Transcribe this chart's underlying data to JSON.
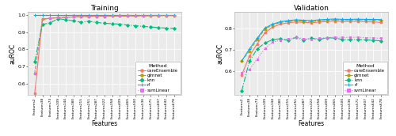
{
  "x_labels": [
    "Features2",
    "Features38",
    "Features73",
    "Features109",
    "Features144",
    "Features180",
    "Features215",
    "Features251",
    "Features287",
    "Features322",
    "Features358",
    "Features409",
    "Features465",
    "Features500",
    "Features536",
    "Features571",
    "Features607",
    "Features642",
    "Features678"
  ],
  "train": {
    "careEnsemble": [
      0.545,
      0.975,
      0.98,
      0.984,
      0.986,
      0.988,
      0.99,
      0.991,
      0.992,
      0.992,
      0.993,
      0.993,
      0.994,
      0.994,
      0.995,
      0.995,
      0.996,
      0.996,
      0.996
    ],
    "glmnet": [
      0.66,
      0.975,
      0.98,
      0.984,
      0.986,
      0.988,
      0.99,
      0.991,
      0.992,
      0.992,
      0.993,
      0.993,
      0.994,
      0.994,
      0.995,
      0.995,
      0.996,
      0.996,
      0.996
    ],
    "knn": [
      0.73,
      0.945,
      0.953,
      0.978,
      0.972,
      0.965,
      0.957,
      0.963,
      0.956,
      0.951,
      0.949,
      0.946,
      0.941,
      0.937,
      0.933,
      0.93,
      0.926,
      0.923,
      0.921
    ],
    "rf": [
      1.0,
      1.0,
      1.0,
      1.0,
      1.0,
      1.0,
      1.0,
      1.0,
      1.0,
      1.0,
      1.0,
      1.0,
      1.0,
      1.0,
      1.0,
      1.0,
      1.0,
      1.0,
      1.0
    ],
    "svmLinear": [
      0.66,
      0.975,
      0.98,
      0.984,
      0.986,
      0.988,
      0.99,
      0.991,
      0.992,
      0.992,
      0.993,
      0.993,
      0.994,
      0.994,
      0.995,
      0.995,
      0.996,
      0.996,
      0.996
    ]
  },
  "valid": {
    "careEnsemble": [
      0.584,
      0.672,
      0.728,
      0.78,
      0.806,
      0.82,
      0.826,
      0.83,
      0.828,
      0.826,
      0.83,
      0.832,
      0.834,
      0.832,
      0.832,
      0.833,
      0.831,
      0.83,
      0.828
    ],
    "glmnet": [
      0.65,
      0.695,
      0.748,
      0.796,
      0.816,
      0.828,
      0.832,
      0.836,
      0.834,
      0.832,
      0.836,
      0.838,
      0.84,
      0.839,
      0.839,
      0.84,
      0.839,
      0.839,
      0.838
    ],
    "knn": [
      0.51,
      0.648,
      0.705,
      0.732,
      0.748,
      0.752,
      0.744,
      0.758,
      0.746,
      0.755,
      0.748,
      0.757,
      0.755,
      0.749,
      0.747,
      0.749,
      0.747,
      0.745,
      0.742
    ],
    "rf": [
      0.648,
      0.705,
      0.755,
      0.802,
      0.82,
      0.831,
      0.836,
      0.84,
      0.838,
      0.836,
      0.84,
      0.842,
      0.844,
      0.842,
      0.842,
      0.843,
      0.842,
      0.842,
      0.841
    ],
    "svmLinear": [
      0.595,
      0.61,
      0.658,
      0.708,
      0.736,
      0.746,
      0.752,
      0.758,
      0.753,
      0.75,
      0.754,
      0.757,
      0.76,
      0.758,
      0.758,
      0.759,
      0.757,
      0.756,
      0.754
    ]
  },
  "colors": {
    "careEnsemble": "#F8766D",
    "glmnet": "#B8A000",
    "knn": "#00BF7D",
    "rf": "#00B0F6",
    "svmLinear": "#E76BF3"
  },
  "markers": {
    "careEnsemble": "o",
    "glmnet": "o",
    "knn": "D",
    "rf": "+",
    "svmLinear": "s"
  },
  "linestyles": {
    "careEnsemble": "-",
    "glmnet": "--",
    "knn": "-.",
    "rf": "-",
    "svmLinear": ":"
  },
  "train_ylim": [
    0.535,
    1.015
  ],
  "valid_ylim": [
    0.49,
    0.875
  ],
  "train_yticks": [
    0.6,
    0.7,
    0.8,
    0.9,
    1.0
  ],
  "valid_yticks": [
    0.6,
    0.7,
    0.8
  ],
  "ylabel": "auROC",
  "xlabel": "Features",
  "title_train": "Training",
  "title_valid": "Validation",
  "legend_labels": [
    "careEnsemble",
    "glmnet",
    "knn",
    "rf",
    "svmLinear"
  ],
  "legend_title": "Method",
  "bg_color": "#EBEBEB",
  "grid_color": "#FFFFFF"
}
